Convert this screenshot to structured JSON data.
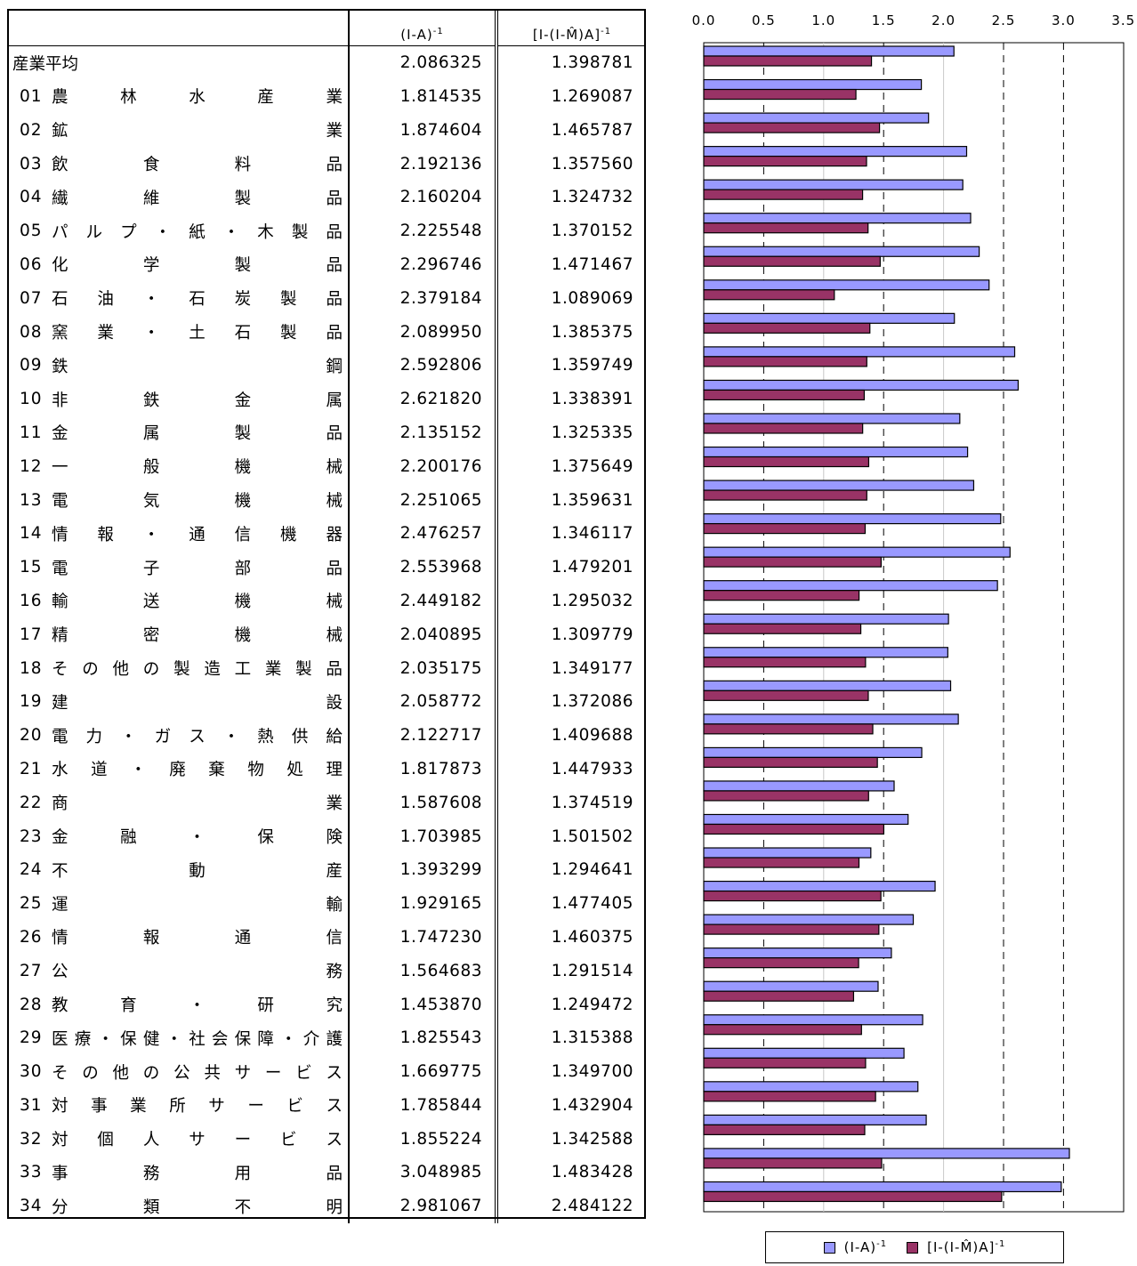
{
  "table": {
    "header": {
      "col1_base": "(I-A)",
      "col1_sup": "-1",
      "col2_base": "[I-(I-M̂)A]",
      "col2_sup": "-1"
    },
    "average": {
      "label": "産業平均",
      "v1": "2.086325",
      "v2": "1.398781"
    },
    "rows": [
      {
        "code": "01",
        "name": "農林水産業",
        "v1": "1.814535",
        "v2": "1.269087"
      },
      {
        "code": "02",
        "name": "鉱業",
        "v1": "1.874604",
        "v2": "1.465787"
      },
      {
        "code": "03",
        "name": "飲食料品",
        "v1": "2.192136",
        "v2": "1.357560"
      },
      {
        "code": "04",
        "name": "繊維製品",
        "v1": "2.160204",
        "v2": "1.324732"
      },
      {
        "code": "05",
        "name": "パルプ・紙・木製品",
        "v1": "2.225548",
        "v2": "1.370152"
      },
      {
        "code": "06",
        "name": "化学製品",
        "v1": "2.296746",
        "v2": "1.471467"
      },
      {
        "code": "07",
        "name": "石油・石炭製品",
        "v1": "2.379184",
        "v2": "1.089069"
      },
      {
        "code": "08",
        "name": "窯業・土石製品",
        "v1": "2.089950",
        "v2": "1.385375"
      },
      {
        "code": "09",
        "name": "鉄鋼",
        "v1": "2.592806",
        "v2": "1.359749"
      },
      {
        "code": "10",
        "name": "非鉄金属",
        "v1": "2.621820",
        "v2": "1.338391"
      },
      {
        "code": "11",
        "name": "金属製品",
        "v1": "2.135152",
        "v2": "1.325335"
      },
      {
        "code": "12",
        "name": "一般機械",
        "v1": "2.200176",
        "v2": "1.375649"
      },
      {
        "code": "13",
        "name": "電気機械",
        "v1": "2.251065",
        "v2": "1.359631"
      },
      {
        "code": "14",
        "name": "情報・通信機器",
        "v1": "2.476257",
        "v2": "1.346117"
      },
      {
        "code": "15",
        "name": "電子部品",
        "v1": "2.553968",
        "v2": "1.479201"
      },
      {
        "code": "16",
        "name": "輸送機械",
        "v1": "2.449182",
        "v2": "1.295032"
      },
      {
        "code": "17",
        "name": "精密機械",
        "v1": "2.040895",
        "v2": "1.309779"
      },
      {
        "code": "18",
        "name": "その他の製造工業製品",
        "v1": "2.035175",
        "v2": "1.349177"
      },
      {
        "code": "19",
        "name": "建設",
        "v1": "2.058772",
        "v2": "1.372086"
      },
      {
        "code": "20",
        "name": "電力・ガス・熱供給",
        "v1": "2.122717",
        "v2": "1.409688"
      },
      {
        "code": "21",
        "name": "水道・廃棄物処理",
        "v1": "1.817873",
        "v2": "1.447933"
      },
      {
        "code": "22",
        "name": "商業",
        "v1": "1.587608",
        "v2": "1.374519"
      },
      {
        "code": "23",
        "name": "金融・保険",
        "v1": "1.703985",
        "v2": "1.501502"
      },
      {
        "code": "24",
        "name": "不動産",
        "v1": "1.393299",
        "v2": "1.294641"
      },
      {
        "code": "25",
        "name": "運輸",
        "v1": "1.929165",
        "v2": "1.477405"
      },
      {
        "code": "26",
        "name": "情報通信",
        "v1": "1.747230",
        "v2": "1.460375"
      },
      {
        "code": "27",
        "name": "公務",
        "v1": "1.564683",
        "v2": "1.291514"
      },
      {
        "code": "28",
        "name": "教育・研究",
        "v1": "1.453870",
        "v2": "1.249472"
      },
      {
        "code": "29",
        "name": "医療・保健・社会保障・介護",
        "v1": "1.825543",
        "v2": "1.315388"
      },
      {
        "code": "30",
        "name": "その他の公共サービス",
        "v1": "1.669775",
        "v2": "1.349700"
      },
      {
        "code": "31",
        "name": "対事業所サービス",
        "v1": "1.785844",
        "v2": "1.432904"
      },
      {
        "code": "32",
        "name": "対個人サービス",
        "v1": "1.855224",
        "v2": "1.342588"
      },
      {
        "code": "33",
        "name": "事務用品",
        "v1": "3.048985",
        "v2": "1.483428"
      },
      {
        "code": "34",
        "name": "分類不明",
        "v1": "2.981067",
        "v2": "2.484122"
      }
    ]
  },
  "chart_data": {
    "type": "bar",
    "orientation": "horizontal",
    "categories": [
      "産業平均",
      "01",
      "02",
      "03",
      "04",
      "05",
      "06",
      "07",
      "08",
      "09",
      "10",
      "11",
      "12",
      "13",
      "14",
      "15",
      "16",
      "17",
      "18",
      "19",
      "20",
      "21",
      "22",
      "23",
      "24",
      "25",
      "26",
      "27",
      "28",
      "29",
      "30",
      "31",
      "32",
      "33",
      "34"
    ],
    "series": [
      {
        "name": "(I-A)-1",
        "color": "#9999ff",
        "values": [
          2.086325,
          1.814535,
          1.874604,
          2.192136,
          2.160204,
          2.225548,
          2.296746,
          2.379184,
          2.08995,
          2.592806,
          2.62182,
          2.135152,
          2.200176,
          2.251065,
          2.476257,
          2.553968,
          2.449182,
          2.040895,
          2.035175,
          2.058772,
          2.122717,
          1.817873,
          1.587608,
          1.703985,
          1.393299,
          1.929165,
          1.74723,
          1.564683,
          1.45387,
          1.825543,
          1.669775,
          1.785844,
          1.855224,
          3.048985,
          2.981067
        ]
      },
      {
        "name": "[I-(I-M̂)A]-1",
        "color": "#993366",
        "values": [
          1.398781,
          1.269087,
          1.465787,
          1.35756,
          1.324732,
          1.370152,
          1.471467,
          1.089069,
          1.385375,
          1.359749,
          1.338391,
          1.325335,
          1.375649,
          1.359631,
          1.346117,
          1.479201,
          1.295032,
          1.309779,
          1.349177,
          1.372086,
          1.409688,
          1.447933,
          1.374519,
          1.501502,
          1.294641,
          1.477405,
          1.460375,
          1.291514,
          1.249472,
          1.315388,
          1.3497,
          1.432904,
          1.342588,
          1.483428,
          2.484122
        ]
      }
    ],
    "x_ticks": [
      "0.0",
      "0.5",
      "1.0",
      "1.5",
      "2.0",
      "2.5",
      "3.0",
      "3.5"
    ],
    "xlim": [
      0,
      3.5
    ],
    "grid": "vertical dashed at 0.5, 1.5, 2.5, 3.0; solid faint at 1.0, 2.0",
    "legend": "bottom",
    "legend_labels": [
      {
        "base": "(I-A)",
        "sup": "-1"
      },
      {
        "base": "[I-(I-M̂)A]",
        "sup": "-1"
      }
    ]
  }
}
